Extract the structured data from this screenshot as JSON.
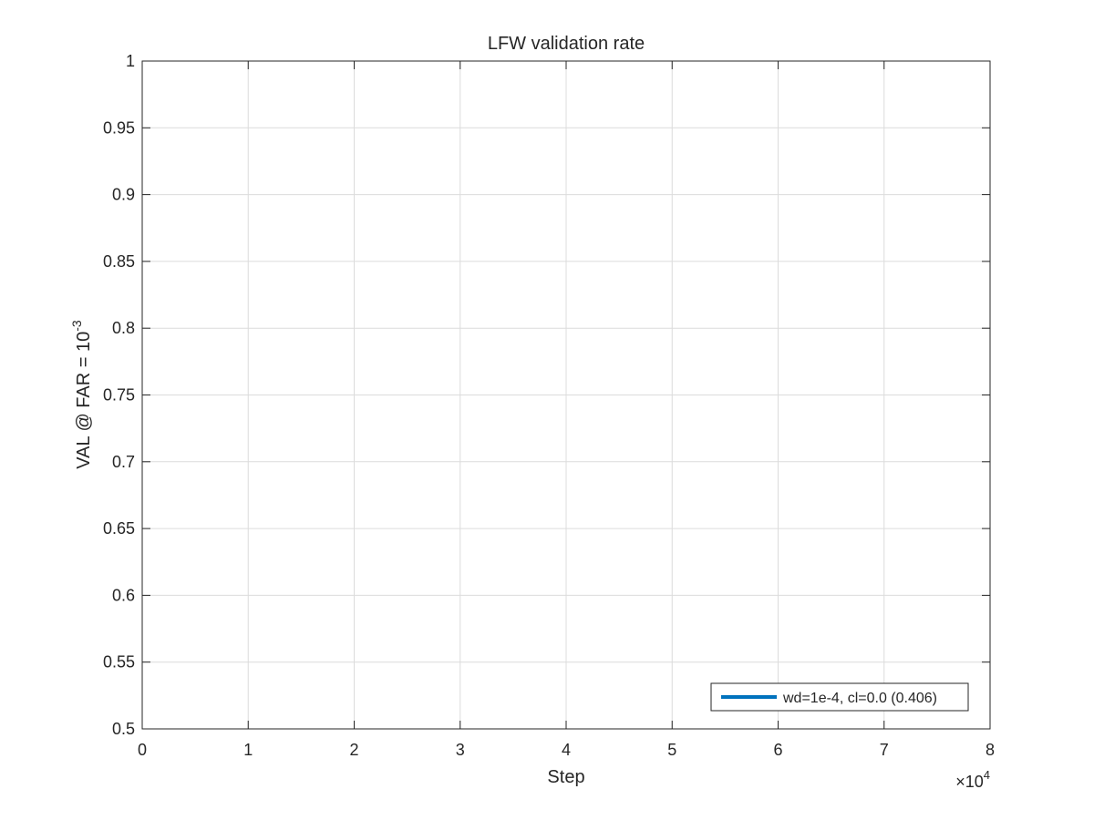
{
  "chart_data": {
    "type": "line",
    "title": "LFW validation rate",
    "xlabel": "Step",
    "ylabel": {
      "base": "VAL @ FAR = 10",
      "exponent": "-3"
    },
    "x_exponent_label": {
      "base": "×10",
      "exponent": "4"
    },
    "xlim": [
      0,
      80000
    ],
    "ylim": [
      0.5,
      1.0
    ],
    "x_ticks": [
      0,
      10000,
      20000,
      30000,
      40000,
      50000,
      60000,
      70000,
      80000
    ],
    "x_tick_labels": [
      "0",
      "1",
      "2",
      "3",
      "4",
      "5",
      "6",
      "7",
      "8"
    ],
    "y_ticks": [
      0.5,
      0.55,
      0.6,
      0.65,
      0.7,
      0.75,
      0.8,
      0.85,
      0.9,
      0.95,
      1.0
    ],
    "y_tick_labels": [
      "0.5",
      "0.55",
      "0.6",
      "0.65",
      "0.7",
      "0.75",
      "0.8",
      "0.85",
      "0.9",
      "0.95",
      "1"
    ],
    "grid": true,
    "legend_position": "bottom-right",
    "series": [
      {
        "name": "wd=1e-4, cl=0.0 (0.406)",
        "color": "#0072BD",
        "x": [],
        "y": []
      }
    ]
  }
}
